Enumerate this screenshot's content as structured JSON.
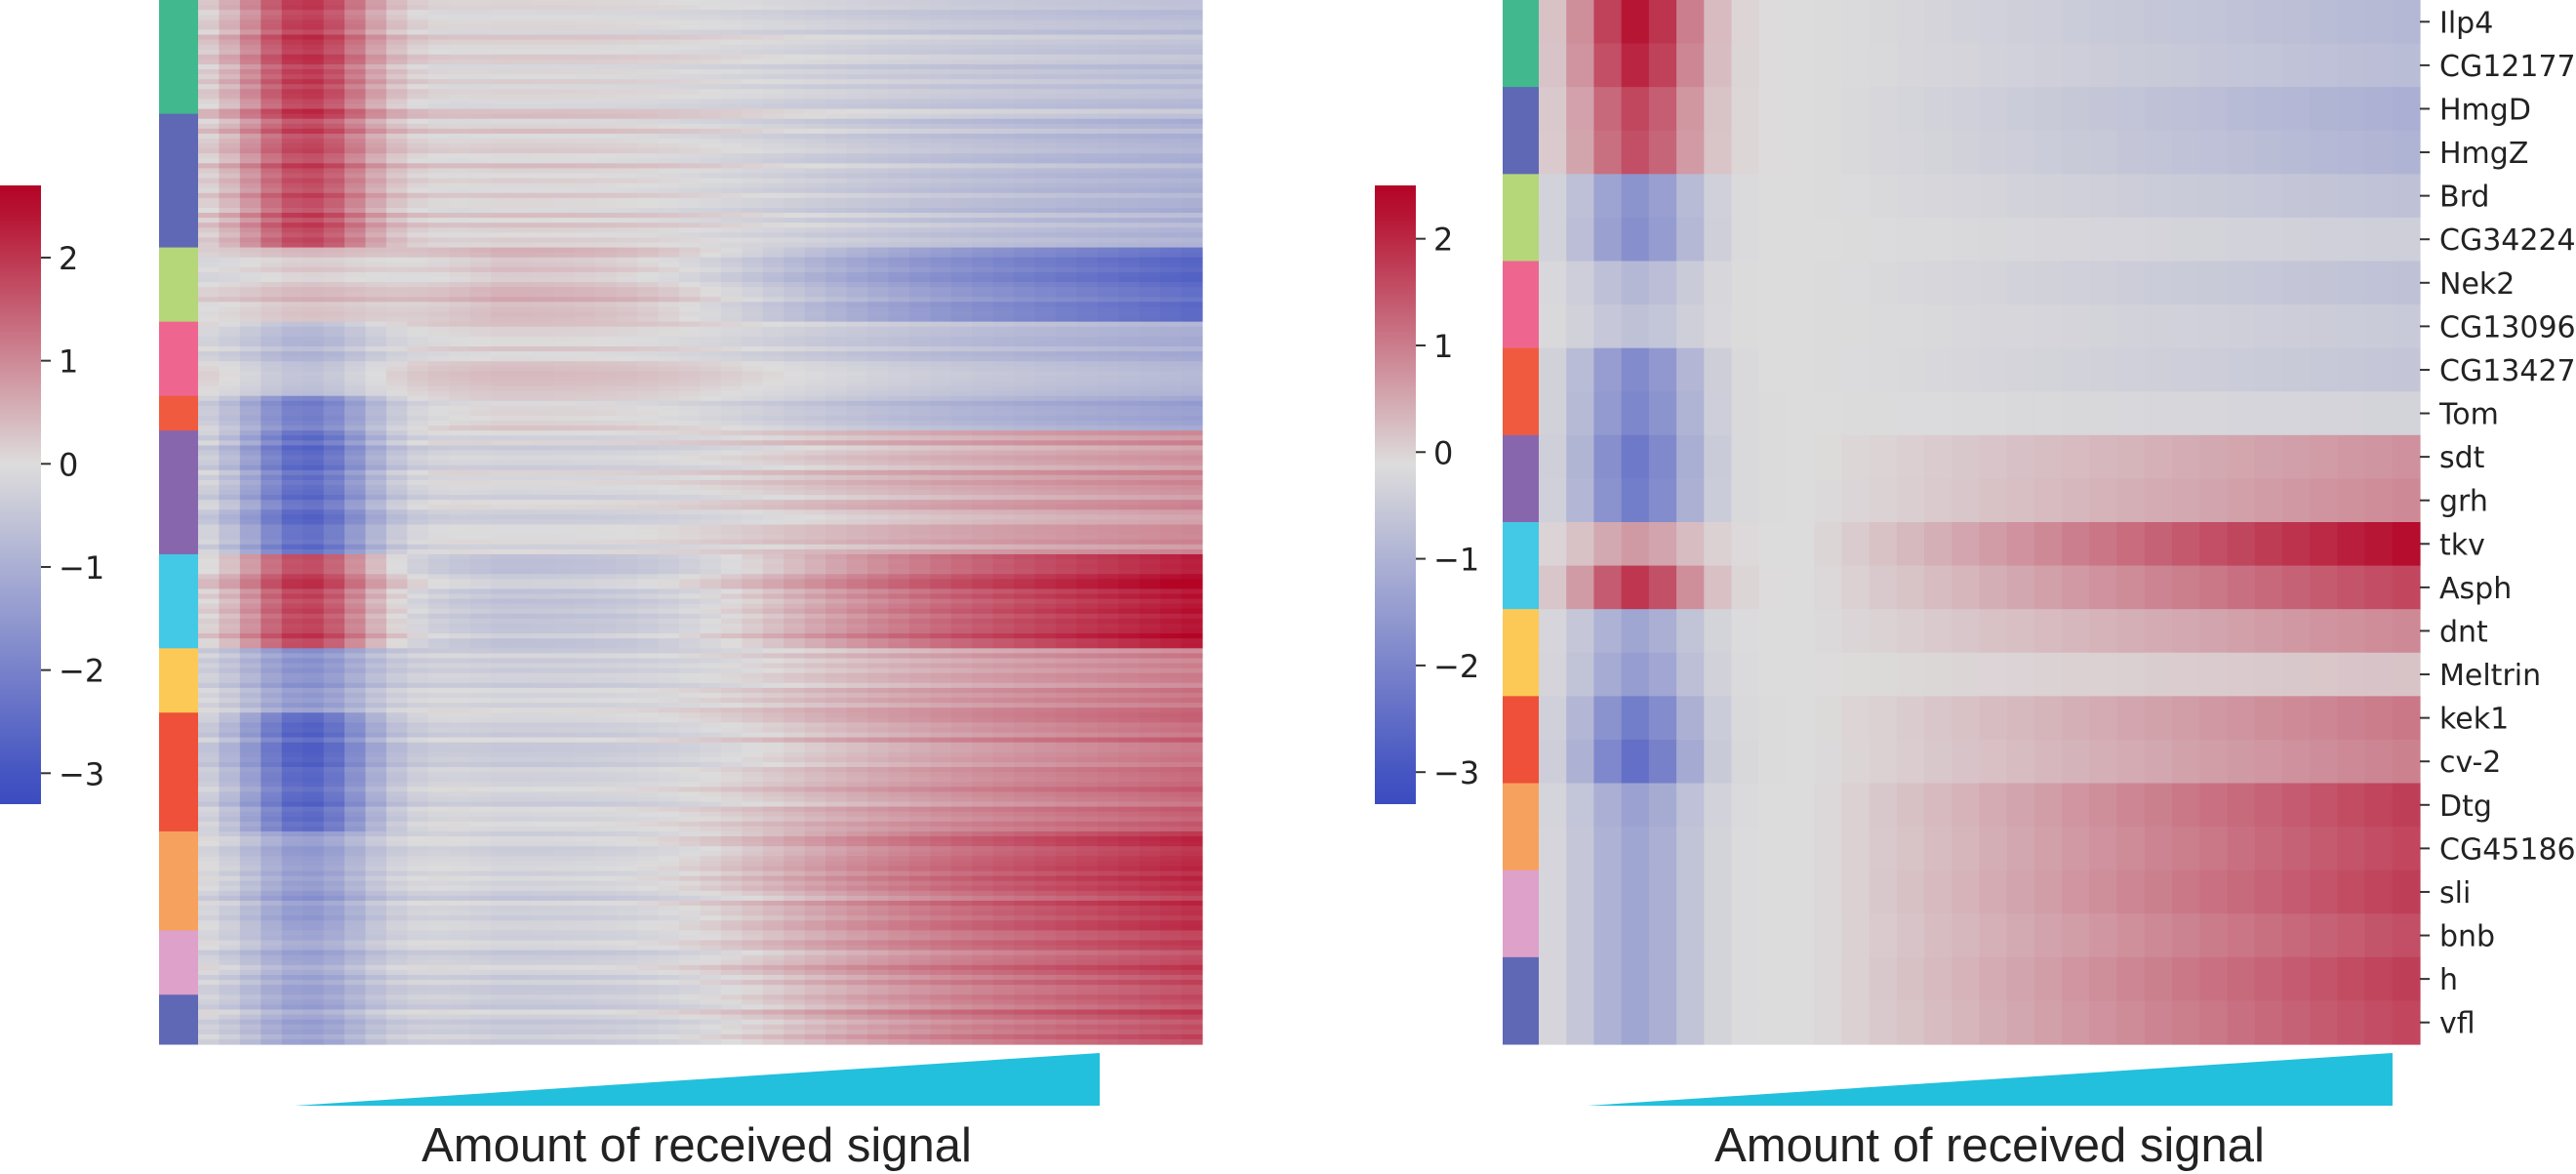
{
  "colors": {
    "clusters": [
      "#41b88d",
      "#5f68b4",
      "#b6d67a",
      "#ee6690",
      "#f05a3e",
      "#8766ae",
      "#43c8e6",
      "#fdc956",
      "#ee5039",
      "#f7a15e",
      "#dea1c9"
    ],
    "colormap": [
      "#3b4cc0",
      "#dddcdc",
      "#b40426"
    ],
    "signal_wedge": "#22c0dc"
  },
  "chart_data": [
    {
      "type": "heatmap",
      "title": "",
      "xlabel": "Amount of received signal",
      "ylabel": "",
      "colorbar": {
        "ticks": [
          2,
          1,
          0,
          -1,
          -2,
          -3
        ],
        "tick_labels": [
          "2",
          "1",
          "0",
          "−1",
          "−2",
          "−3"
        ],
        "range": [
          -3.3,
          2.7
        ]
      },
      "row_clusters": [
        {
          "color_index": 0,
          "rows": 23
        },
        {
          "color_index": 1,
          "rows": 27
        },
        {
          "color_index": 2,
          "rows": 15
        },
        {
          "color_index": 3,
          "rows": 15
        },
        {
          "color_index": 4,
          "rows": 7
        },
        {
          "color_index": 5,
          "rows": 25
        },
        {
          "color_index": 1,
          "rows": 0
        },
        {
          "color_index": 6,
          "rows": 19
        },
        {
          "color_index": 7,
          "rows": 13
        },
        {
          "color_index": 8,
          "rows": 24
        },
        {
          "color_index": 9,
          "rows": 20
        },
        {
          "color_index": 10,
          "rows": 13
        },
        {
          "color_index": 1,
          "rows": 10
        }
      ],
      "cluster_profiles": [
        [
          2.0,
          -0.6
        ],
        [
          1.8,
          -0.9
        ],
        [
          0.3,
          -2.5
        ],
        [
          -0.8,
          -1.0
        ],
        [
          -2.0,
          -1.2
        ],
        [
          -2.5,
          0.9
        ],
        [
          0,
          0
        ],
        [
          2.0,
          2.5
        ],
        [
          -1.5,
          1.2
        ],
        [
          -2.6,
          1.4
        ],
        [
          -1.5,
          2.0
        ],
        [
          -1.2,
          1.8
        ],
        [
          -1.2,
          1.8
        ]
      ]
    },
    {
      "type": "heatmap",
      "title": "",
      "xlabel": "Amount of received signal",
      "ylabel": "",
      "colorbar": {
        "ticks": [
          2,
          1,
          0,
          -1,
          -2,
          -3
        ],
        "tick_labels": [
          "2",
          "1",
          "0",
          "−1",
          "−2",
          "−3"
        ],
        "range": [
          -3.3,
          2.5
        ]
      },
      "genes": [
        "Ilp4",
        "CG12177",
        "HmgD",
        "HmgZ",
        "Brd",
        "CG34224",
        "Nek2",
        "CG13096",
        "CG13427",
        "Tom",
        "sdt",
        "grh",
        "tkv",
        "Asph",
        "dnt",
        "Meltrin",
        "kek1",
        "cv-2",
        "Dtg",
        "CG45186",
        "sli",
        "bnb",
        "h",
        "vfl"
      ],
      "row_cluster_colors": [
        0,
        0,
        1,
        1,
        2,
        2,
        3,
        3,
        4,
        4,
        5,
        5,
        6,
        6,
        7,
        7,
        8,
        8,
        9,
        9,
        10,
        10,
        1,
        1
      ]
    }
  ]
}
